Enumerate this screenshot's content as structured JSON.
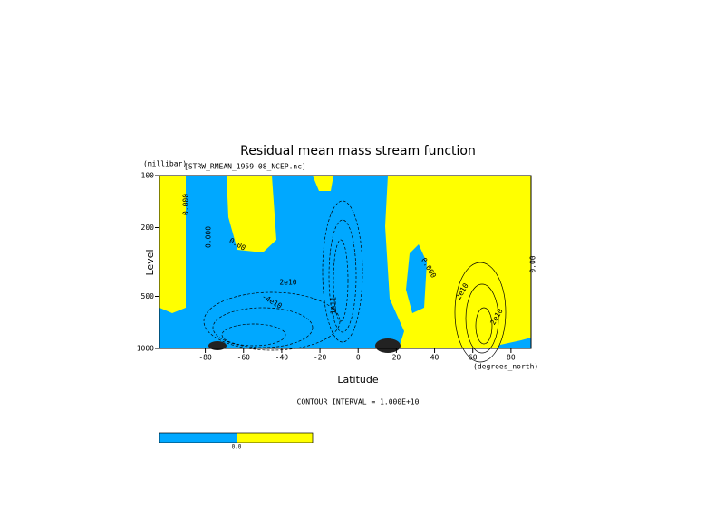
{
  "chart_data": {
    "type": "contour",
    "title": "Residual mean mass stream function",
    "subtitle": "[STRW_RMEAN_1959-08_NCEP.nc]",
    "x_label": "Latitude",
    "x_units": "(degrees_north)",
    "y_label": "Level",
    "y_units": "(millibar)",
    "xlim": [
      -104,
      90.5
    ],
    "xticks": [
      -80,
      -60,
      -40,
      -20,
      0,
      20,
      40,
      60,
      80
    ],
    "ylim": [
      1000,
      100
    ],
    "yticks": [
      100,
      200,
      500,
      1000
    ],
    "y_log": true,
    "fill_colors": [
      "#00a8ff",
      "#ffff00"
    ],
    "contour_labels": [
      "0.000",
      "0.000",
      "0.00",
      "2e10",
      "-4e10",
      "-1e11",
      "0.000",
      "2e10",
      "2e10",
      "0.00"
    ],
    "footer": "CONTOUR INTERVAL = 1.000E+10",
    "colorbar_labels": [
      "0.0"
    ]
  }
}
